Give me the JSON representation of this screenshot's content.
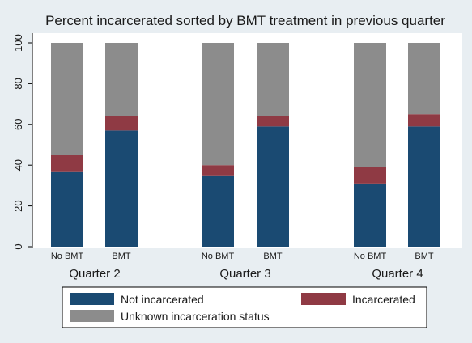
{
  "chart_data": {
    "type": "bar",
    "stacked": true,
    "title": "Percent incarcerated sorted by BMT treatment in previous quarter",
    "xlabel": "",
    "ylabel": "",
    "ylim": [
      0,
      100
    ],
    "yticks": [
      0,
      20,
      40,
      60,
      80,
      100
    ],
    "yticks_rotated": true,
    "grid": false,
    "groups": [
      {
        "label": "Quarter 2",
        "categories": [
          "No BMT",
          "BMT"
        ]
      },
      {
        "label": "Quarter 3",
        "categories": [
          "No BMT",
          "BMT"
        ]
      },
      {
        "label": "Quarter 4",
        "categories": [
          "No BMT",
          "BMT"
        ]
      }
    ],
    "categories": [
      "No BMT",
      "BMT",
      "No BMT",
      "BMT",
      "No BMT",
      "BMT"
    ],
    "series": [
      {
        "name": "Not incarcerated",
        "color": "#1a4a72",
        "values": [
          37,
          57,
          35,
          59,
          31,
          59
        ]
      },
      {
        "name": "Incarcerated",
        "color": "#8f3a44",
        "values": [
          8,
          7,
          5,
          5,
          8,
          6
        ]
      },
      {
        "name": "Unknown incarceration status",
        "color": "#8c8c8c",
        "values": [
          55,
          36,
          60,
          36,
          61,
          35
        ]
      }
    ],
    "legend_position": "bottom",
    "background": "#e8eef2",
    "plot_background": "#ffffff"
  }
}
